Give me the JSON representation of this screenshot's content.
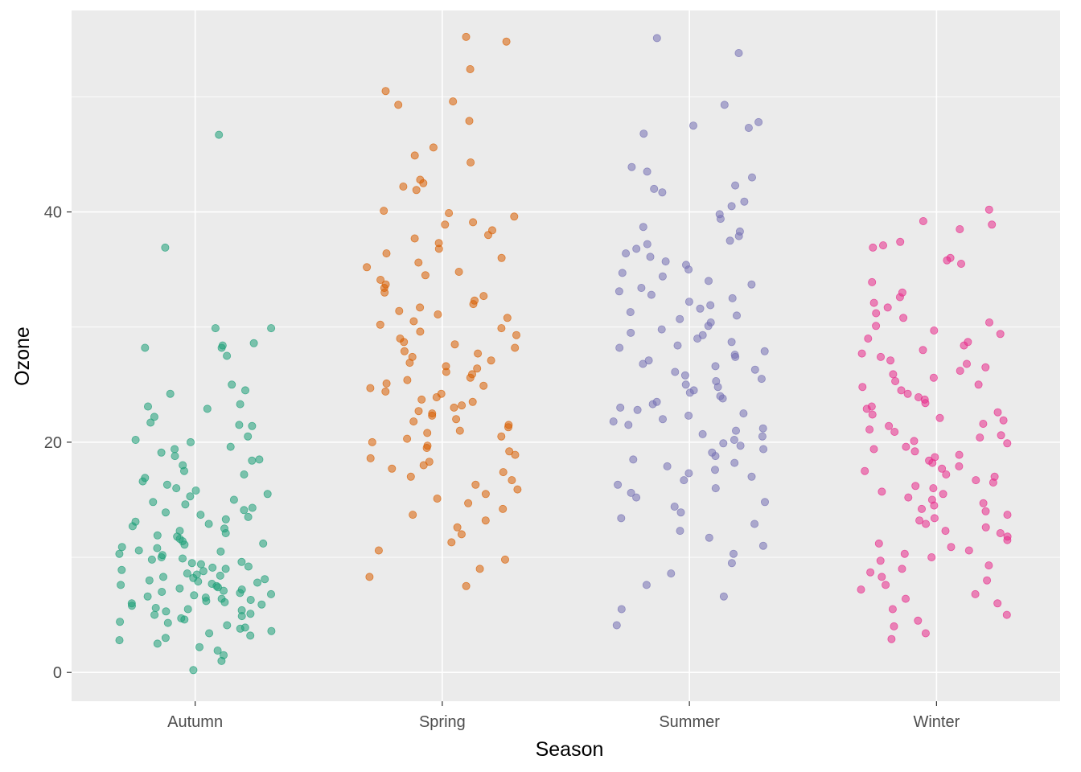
{
  "chart_data": {
    "type": "scatter",
    "title": "",
    "xlabel": "Season",
    "ylabel": "Ozone",
    "categories": [
      "Autumn",
      "Spring",
      "Summer",
      "Winter"
    ],
    "ylim": [
      -2.5,
      57.5
    ],
    "yticks": [
      0,
      20,
      40
    ],
    "grid": true,
    "legend": "none",
    "jitter": "horizontal",
    "background": "#ebebeb",
    "colors": [
      "#1b9e77",
      "#d95f02",
      "#7570b3",
      "#e7298a"
    ],
    "series": [
      {
        "category": "Autumn",
        "values": [
          46.7,
          36.9,
          29.9,
          29.9,
          28.4,
          28.2,
          28.2,
          28.6,
          27.5,
          24.5,
          25.0,
          24.2,
          23.3,
          23.1,
          22.9,
          22.2,
          21.7,
          21.5,
          21.4,
          20.5,
          20.2,
          20.0,
          19.6,
          19.4,
          19.1,
          18.8,
          18.5,
          18.4,
          18.0,
          17.5,
          17.2,
          16.9,
          16.6,
          16.3,
          16.0,
          15.8,
          15.5,
          15.3,
          15.0,
          14.8,
          14.6,
          14.3,
          14.1,
          13.9,
          13.7,
          13.5,
          13.3,
          13.1,
          12.9,
          12.7,
          12.5,
          12.3,
          12.1,
          11.9,
          11.8,
          11.6,
          11.4,
          11.2,
          11.1,
          10.9,
          10.8,
          10.6,
          10.5,
          10.3,
          10.2,
          10.0,
          9.9,
          9.8,
          9.6,
          9.5,
          9.4,
          9.2,
          9.1,
          9.0,
          8.9,
          8.8,
          8.6,
          8.5,
          8.4,
          8.3,
          8.2,
          8.1,
          8.0,
          7.9,
          7.8,
          7.7,
          7.6,
          7.5,
          7.4,
          7.3,
          7.2,
          7.1,
          7.0,
          6.9,
          6.8,
          6.7,
          6.6,
          6.5,
          6.4,
          6.3,
          6.2,
          6.1,
          6.0,
          5.9,
          5.8,
          5.6,
          5.5,
          5.4,
          5.3,
          5.1,
          5.0,
          4.9,
          4.7,
          4.6,
          4.4,
          4.3,
          4.1,
          3.9,
          3.8,
          3.6,
          3.4,
          3.2,
          3.0,
          2.8,
          2.5,
          2.2,
          1.9,
          1.5,
          1.0,
          0.2
        ]
      },
      {
        "category": "Spring",
        "values": [
          55.2,
          54.8,
          52.4,
          50.5,
          49.6,
          49.3,
          47.9,
          45.6,
          44.9,
          44.3,
          42.8,
          42.5,
          42.2,
          41.9,
          40.1,
          39.9,
          39.6,
          39.1,
          38.9,
          38.4,
          38.0,
          37.7,
          37.3,
          36.8,
          36.4,
          36.0,
          35.6,
          35.2,
          34.8,
          34.5,
          34.1,
          33.7,
          33.4,
          33.0,
          32.7,
          32.3,
          32.0,
          31.7,
          31.4,
          31.1,
          30.8,
          30.5,
          30.2,
          29.9,
          29.6,
          29.3,
          29.0,
          28.7,
          28.5,
          28.2,
          27.9,
          27.7,
          27.4,
          27.1,
          26.9,
          26.6,
          26.4,
          26.1,
          25.9,
          25.6,
          25.4,
          25.1,
          24.9,
          24.7,
          24.4,
          24.2,
          23.9,
          23.7,
          23.5,
          23.2,
          23.0,
          22.7,
          22.5,
          22.3,
          22.0,
          21.8,
          21.5,
          21.3,
          21.0,
          20.8,
          20.5,
          20.3,
          20.0,
          19.7,
          19.5,
          19.2,
          18.9,
          18.6,
          18.3,
          18.0,
          17.7,
          17.4,
          17.0,
          16.7,
          16.3,
          15.9,
          15.5,
          15.1,
          14.7,
          14.2,
          13.7,
          13.2,
          12.6,
          12.0,
          11.3,
          10.6,
          9.8,
          9.0,
          8.3,
          7.5
        ]
      },
      {
        "category": "Summer",
        "values": [
          55.1,
          53.8,
          49.3,
          47.8,
          47.5,
          47.3,
          46.8,
          43.9,
          43.5,
          43.0,
          42.3,
          42.0,
          41.7,
          40.9,
          40.5,
          39.8,
          39.4,
          38.7,
          38.3,
          37.9,
          37.5,
          37.2,
          36.8,
          36.4,
          36.1,
          35.7,
          35.4,
          35.0,
          34.7,
          34.4,
          34.0,
          33.7,
          33.4,
          33.1,
          32.8,
          32.5,
          32.2,
          31.9,
          31.6,
          31.3,
          31.0,
          30.7,
          30.4,
          30.1,
          29.8,
          29.5,
          29.3,
          29.0,
          28.7,
          28.4,
          28.2,
          27.9,
          27.6,
          27.4,
          27.1,
          26.8,
          26.6,
          26.3,
          26.1,
          25.8,
          25.5,
          25.3,
          25.0,
          24.8,
          24.5,
          24.3,
          24.0,
          23.8,
          23.5,
          23.3,
          23.0,
          22.8,
          22.5,
          22.3,
          22.0,
          21.8,
          21.5,
          21.2,
          21.0,
          20.7,
          20.5,
          20.2,
          19.9,
          19.7,
          19.4,
          19.1,
          18.8,
          18.5,
          18.2,
          17.9,
          17.6,
          17.3,
          17.0,
          16.7,
          16.3,
          16.0,
          15.6,
          15.2,
          14.8,
          14.4,
          13.9,
          13.4,
          12.9,
          12.3,
          11.7,
          11.0,
          10.3,
          9.5,
          8.6,
          7.6,
          6.6,
          5.5,
          4.1
        ]
      },
      {
        "category": "Winter",
        "values": [
          40.2,
          39.2,
          38.9,
          38.5,
          37.4,
          37.1,
          36.9,
          36.0,
          35.8,
          35.5,
          33.9,
          33.0,
          32.6,
          32.1,
          31.7,
          31.2,
          30.8,
          30.4,
          30.1,
          29.7,
          29.4,
          29.0,
          28.7,
          28.4,
          28.0,
          27.7,
          27.4,
          27.1,
          26.8,
          26.5,
          26.2,
          25.9,
          25.6,
          25.3,
          25.0,
          24.8,
          24.5,
          24.2,
          23.9,
          23.7,
          23.4,
          23.1,
          22.9,
          22.6,
          22.4,
          22.1,
          21.9,
          21.6,
          21.4,
          21.1,
          20.9,
          20.6,
          20.4,
          20.1,
          19.9,
          19.6,
          19.4,
          19.2,
          18.9,
          18.7,
          18.4,
          18.2,
          17.9,
          17.7,
          17.5,
          17.2,
          17.0,
          16.7,
          16.5,
          16.2,
          16.0,
          15.7,
          15.5,
          15.2,
          15.0,
          14.7,
          14.5,
          14.2,
          14.0,
          13.7,
          13.4,
          13.2,
          12.9,
          12.6,
          12.3,
          12.1,
          11.8,
          11.5,
          11.2,
          10.9,
          10.6,
          10.3,
          10.0,
          9.7,
          9.3,
          9.0,
          8.7,
          8.3,
          8.0,
          7.6,
          7.2,
          6.8,
          6.4,
          6.0,
          5.5,
          5.0,
          4.5,
          4.0,
          3.4,
          2.9
        ]
      }
    ]
  }
}
